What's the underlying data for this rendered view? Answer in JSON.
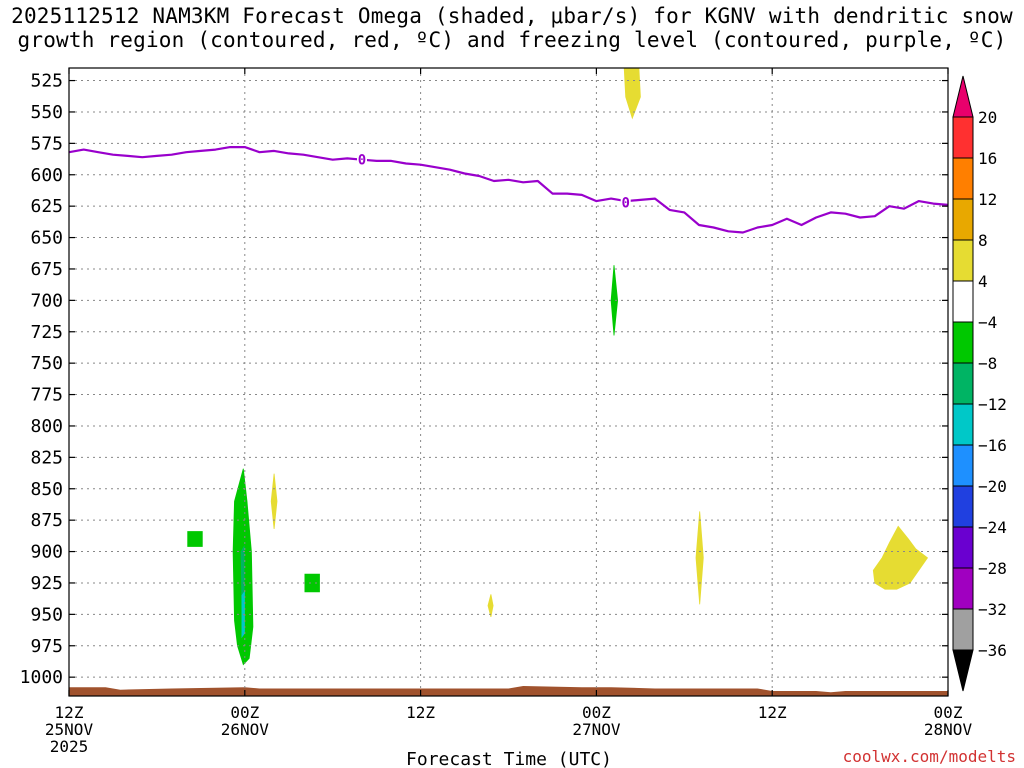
{
  "title_line1": "2025112512 NAM3KM Forecast Omega (shaded, μbar/s) for KGNV with dendritic snow",
  "title_line2": "growth region (contoured, red, ºC) and freezing level (contoured, purple, ºC)",
  "xlabel": "Forecast Time (UTC)",
  "credit": "coolwx.com/modelts",
  "chart_data": {
    "type": "heatmap",
    "xlabel": "Forecast Time (UTC)",
    "ylabel": "",
    "x_unit": "forecast hour from 2025-11-25 12Z",
    "xlim": [
      0,
      60
    ],
    "ylim": [
      1015,
      515
    ],
    "y_ticks": [
      525,
      550,
      575,
      600,
      625,
      650,
      675,
      700,
      725,
      750,
      775,
      800,
      825,
      850,
      875,
      900,
      925,
      950,
      975,
      1000
    ],
    "x_ticks": [
      {
        "hour": 0,
        "line1": "12Z",
        "line2": "25NOV",
        "line3": "2025"
      },
      {
        "hour": 12,
        "line1": "00Z",
        "line2": "26NOV",
        "line3": ""
      },
      {
        "hour": 24,
        "line1": "12Z",
        "line2": "",
        "line3": ""
      },
      {
        "hour": 36,
        "line1": "00Z",
        "line2": "27NOV",
        "line3": ""
      },
      {
        "hour": 48,
        "line1": "12Z",
        "line2": "",
        "line3": ""
      },
      {
        "hour": 60,
        "line1": "00Z",
        "line2": "28NOV",
        "line3": ""
      }
    ],
    "grid": true,
    "colorbar": {
      "labels": [
        "20",
        "16",
        "12",
        "8",
        "4",
        "−4",
        "−8",
        "−12",
        "−16",
        "−20",
        "−24",
        "−28",
        "−32",
        "−36"
      ],
      "colors": [
        "#e8006c",
        "#ff3030",
        "#ff7f00",
        "#e8a800",
        "#e6dc32",
        "#ffffff",
        "#00c800",
        "#00b464",
        "#00c8c8",
        "#1e90ff",
        "#2040e0",
        "#6a00d0",
        "#a000c0",
        "#a0a0a0",
        "#000000"
      ]
    },
    "freezing_level": {
      "label": "0",
      "color": "#9900cc",
      "label_points": [
        [
          20,
          588
        ],
        [
          38,
          622
        ]
      ],
      "points": [
        [
          0,
          582
        ],
        [
          1,
          580
        ],
        [
          2,
          582
        ],
        [
          3,
          584
        ],
        [
          4,
          585
        ],
        [
          5,
          586
        ],
        [
          6,
          585
        ],
        [
          7,
          584
        ],
        [
          8,
          582
        ],
        [
          9,
          581
        ],
        [
          10,
          580
        ],
        [
          11,
          578
        ],
        [
          12,
          578
        ],
        [
          12.5,
          580
        ],
        [
          13,
          582
        ],
        [
          14,
          581
        ],
        [
          15,
          583
        ],
        [
          16,
          584
        ],
        [
          17,
          586
        ],
        [
          18,
          588
        ],
        [
          19,
          587
        ],
        [
          20,
          588
        ],
        [
          21,
          589
        ],
        [
          22,
          589
        ],
        [
          23,
          591
        ],
        [
          24,
          592
        ],
        [
          25,
          594
        ],
        [
          26,
          596
        ],
        [
          27,
          599
        ],
        [
          28,
          601
        ],
        [
          29,
          605
        ],
        [
          30,
          604
        ],
        [
          31,
          606
        ],
        [
          32,
          605
        ],
        [
          33,
          615
        ],
        [
          34,
          615
        ],
        [
          35,
          616
        ],
        [
          36,
          621
        ],
        [
          37,
          619
        ],
        [
          38,
          621
        ],
        [
          39,
          620
        ],
        [
          40,
          619
        ],
        [
          41,
          628
        ],
        [
          42,
          630
        ],
        [
          43,
          640
        ],
        [
          44,
          642
        ],
        [
          45,
          645
        ],
        [
          46,
          646
        ],
        [
          47,
          642
        ],
        [
          48,
          640
        ],
        [
          49,
          635
        ],
        [
          50,
          640
        ],
        [
          51,
          634
        ],
        [
          52,
          630
        ],
        [
          53,
          631
        ],
        [
          54,
          634
        ],
        [
          55,
          633
        ],
        [
          56,
          625
        ],
        [
          57,
          627
        ],
        [
          58,
          621
        ],
        [
          59,
          623
        ],
        [
          60,
          624
        ]
      ]
    },
    "terrain": {
      "color": "#a0522d",
      "points": [
        [
          0,
          1008
        ],
        [
          2.5,
          1008
        ],
        [
          3.5,
          1010
        ],
        [
          7,
          1009
        ],
        [
          12,
          1008
        ],
        [
          13,
          1009
        ],
        [
          16,
          1009
        ],
        [
          24,
          1009
        ],
        [
          30,
          1009
        ],
        [
          31,
          1007
        ],
        [
          35,
          1008
        ],
        [
          37,
          1008
        ],
        [
          40,
          1009
        ],
        [
          47,
          1009
        ],
        [
          48,
          1011
        ],
        [
          51,
          1011
        ],
        [
          52,
          1012
        ],
        [
          53,
          1011
        ],
        [
          60,
          1011
        ]
      ]
    },
    "omega_regions": [
      {
        "value": -4,
        "color": "#00c800",
        "points": [
          [
            11.3,
            860
          ],
          [
            11.6,
            847
          ],
          [
            11.9,
            834
          ],
          [
            12.15,
            860
          ],
          [
            12.45,
            900
          ],
          [
            12.55,
            960
          ],
          [
            12.3,
            985
          ],
          [
            11.9,
            990
          ],
          [
            11.5,
            975
          ],
          [
            11.3,
            955
          ],
          [
            11.2,
            900
          ]
        ]
      },
      {
        "value": -8,
        "color": "#00b464",
        "points": [
          [
            11.75,
            900
          ],
          [
            11.95,
            896
          ],
          [
            11.95,
            940
          ],
          [
            11.8,
            945
          ]
        ]
      },
      {
        "value": -12,
        "color": "#00c8c8",
        "points": [
          [
            11.8,
            935
          ],
          [
            11.98,
            932
          ],
          [
            11.98,
            965
          ],
          [
            11.8,
            968
          ]
        ]
      },
      {
        "value": -4,
        "color": "#00c800",
        "points": [
          [
            8.1,
            884
          ],
          [
            9.1,
            884
          ],
          [
            9.1,
            896
          ],
          [
            8.1,
            896
          ]
        ]
      },
      {
        "value": -4,
        "color": "#00c800",
        "points": [
          [
            16.1,
            918
          ],
          [
            17.1,
            918
          ],
          [
            17.1,
            932
          ],
          [
            16.1,
            932
          ]
        ]
      },
      {
        "value": -4,
        "color": "#00c800",
        "points": [
          [
            37.0,
            700
          ],
          [
            37.2,
            672
          ],
          [
            37.45,
            700
          ],
          [
            37.2,
            728
          ]
        ]
      },
      {
        "value": 4,
        "color": "#e6dc32",
        "points": [
          [
            13.8,
            860
          ],
          [
            14.0,
            838
          ],
          [
            14.2,
            860
          ],
          [
            14.0,
            882
          ]
        ]
      },
      {
        "value": 4,
        "color": "#e6dc32",
        "points": [
          [
            28.6,
            943
          ],
          [
            28.8,
            934
          ],
          [
            28.95,
            943
          ],
          [
            28.8,
            952
          ]
        ]
      },
      {
        "value": 4,
        "color": "#e6dc32",
        "points": [
          [
            37.9,
            515
          ],
          [
            38.9,
            515
          ],
          [
            39.0,
            538
          ],
          [
            38.45,
            555
          ],
          [
            38.0,
            538
          ]
        ]
      },
      {
        "value": 4,
        "color": "#e6dc32",
        "points": [
          [
            42.8,
            905
          ],
          [
            43.05,
            868
          ],
          [
            43.3,
            905
          ],
          [
            43.05,
            942
          ]
        ]
      },
      {
        "value": 4,
        "color": "#e6dc32",
        "points": [
          [
            55.0,
            925
          ],
          [
            54.9,
            915
          ],
          [
            55.5,
            905
          ],
          [
            56.0,
            893
          ],
          [
            56.6,
            880
          ],
          [
            57.3,
            890
          ],
          [
            57.8,
            898
          ],
          [
            58.6,
            905
          ],
          [
            57.4,
            925
          ],
          [
            56.5,
            930
          ],
          [
            55.7,
            930
          ]
        ]
      }
    ]
  }
}
